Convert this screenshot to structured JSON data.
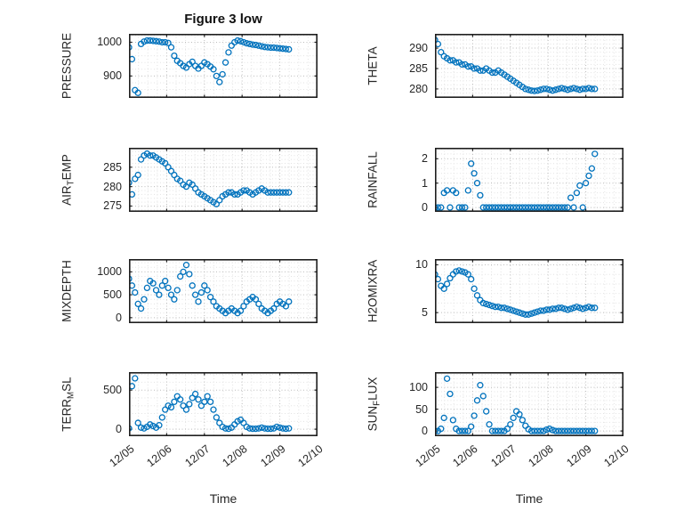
{
  "title": "Figure 3 low",
  "marker": {
    "shape": "circle",
    "color": "#0072BD"
  },
  "colors": {
    "accent": "#0072BD",
    "axis": "#1f1f1f",
    "grid_major": "#bcbcbc",
    "grid_minor": "#e3e3e3",
    "text": "#262626"
  },
  "x_axis": {
    "label": "Time",
    "xlim": [
      0,
      5
    ],
    "ticks": [
      0,
      1,
      2,
      3,
      4,
      5
    ],
    "tick_labels": [
      "12/05",
      "12/06",
      "12/07",
      "12/08",
      "12/09",
      "12/10"
    ],
    "minor_step": 0.25
  },
  "chart_data": {
    "type": "scatter",
    "x_units": "days since 12/05",
    "x": [
      0.0,
      0.08,
      0.16,
      0.24,
      0.32,
      0.4,
      0.48,
      0.56,
      0.64,
      0.72,
      0.8,
      0.88,
      0.96,
      1.04,
      1.12,
      1.2,
      1.28,
      1.36,
      1.44,
      1.52,
      1.6,
      1.68,
      1.76,
      1.84,
      1.92,
      2.0,
      2.08,
      2.16,
      2.24,
      2.32,
      2.4,
      2.48,
      2.56,
      2.64,
      2.72,
      2.8,
      2.88,
      2.96,
      3.04,
      3.12,
      3.2,
      3.28,
      3.36,
      3.44,
      3.52,
      3.6,
      3.68,
      3.76,
      3.84,
      3.92,
      4.0,
      4.08,
      4.16,
      4.24
    ],
    "subplots": [
      {
        "id": "pressure",
        "label_parts": [
          {
            "text": "PRESSURE"
          }
        ],
        "yticks": [
          900,
          1000
        ],
        "ylim": [
          835,
          1025
        ],
        "y": [
          985,
          950,
          858,
          850,
          995,
          1002,
          1005,
          1005,
          1004,
          1003,
          1002,
          1000,
          1000,
          998,
          985,
          960,
          945,
          938,
          930,
          925,
          935,
          942,
          930,
          922,
          930,
          940,
          935,
          928,
          920,
          900,
          882,
          905,
          940,
          970,
          990,
          1000,
          1005,
          1003,
          1000,
          997,
          995,
          993,
          992,
          990,
          988,
          986,
          985,
          984,
          984,
          983,
          982,
          981,
          980,
          979
        ]
      },
      {
        "id": "theta",
        "label_parts": [
          {
            "text": "THETA"
          }
        ],
        "yticks": [
          280,
          285,
          290
        ],
        "ylim": [
          277.8,
          293.5
        ],
        "y": [
          292,
          291,
          289,
          288,
          287.5,
          287,
          287,
          286.5,
          286.5,
          286,
          286,
          285.5,
          285.5,
          285,
          285,
          284.5,
          284.5,
          285,
          284.5,
          284,
          284,
          284.5,
          284,
          283.5,
          283,
          282.5,
          282,
          281.5,
          281,
          280.5,
          280,
          279.8,
          279.6,
          279.5,
          279.6,
          279.8,
          280,
          280,
          279.8,
          279.6,
          279.8,
          280,
          280.2,
          280,
          279.8,
          280,
          280.2,
          280,
          279.8,
          280,
          280,
          280.2,
          280,
          280
        ]
      },
      {
        "id": "air-temp",
        "label_parts": [
          {
            "text": "AIR"
          },
          {
            "text": "T",
            "sub": true
          },
          {
            "text": "EMP"
          }
        ],
        "yticks": [
          275,
          280,
          285
        ],
        "ylim": [
          273.5,
          290
        ],
        "y": [
          281,
          278,
          282,
          283,
          287,
          288,
          288.5,
          288,
          288,
          287.5,
          287,
          286.5,
          286,
          285,
          284,
          283,
          282,
          281.5,
          280.5,
          280,
          281,
          280.5,
          279.5,
          278.5,
          278,
          277.5,
          277,
          276.5,
          276,
          275.5,
          276.5,
          277.5,
          278,
          278.5,
          278.5,
          278,
          278,
          278.5,
          279,
          279,
          278.5,
          278,
          278.5,
          279,
          279.5,
          279,
          278.5,
          278.5,
          278.5,
          278.5,
          278.5,
          278.5,
          278.5,
          278.5
        ]
      },
      {
        "id": "rainfall",
        "label_parts": [
          {
            "text": "RAINFALL"
          }
        ],
        "yticks": [
          0,
          1,
          2
        ],
        "ylim": [
          -0.18,
          2.45
        ],
        "y": [
          0,
          0,
          0,
          0.6,
          0.7,
          0,
          0.7,
          0.6,
          0,
          0,
          0,
          0.7,
          1.8,
          1.4,
          1.0,
          0.5,
          0,
          0,
          0,
          0,
          0,
          0,
          0,
          0,
          0,
          0,
          0,
          0,
          0,
          0,
          0,
          0,
          0,
          0,
          0,
          0,
          0,
          0,
          0,
          0,
          0,
          0,
          0,
          0,
          0,
          0.4,
          0,
          0.6,
          0.9,
          0,
          1.0,
          1.3,
          1.6,
          2.2
        ]
      },
      {
        "id": "mixdepth",
        "label_parts": [
          {
            "text": "MIXDEPTH"
          }
        ],
        "yticks": [
          0,
          500,
          1000
        ],
        "ylim": [
          -120,
          1280
        ],
        "y": [
          850,
          700,
          550,
          300,
          200,
          400,
          650,
          800,
          750,
          600,
          500,
          700,
          800,
          650,
          500,
          400,
          600,
          900,
          1000,
          1150,
          950,
          700,
          500,
          350,
          550,
          700,
          600,
          450,
          350,
          250,
          200,
          150,
          100,
          150,
          200,
          150,
          100,
          150,
          250,
          350,
          400,
          450,
          400,
          300,
          200,
          150,
          100,
          150,
          200,
          300,
          350,
          300,
          250,
          350
        ]
      },
      {
        "id": "h2omixra",
        "label_parts": [
          {
            "text": "H2OMIXRA"
          }
        ],
        "yticks": [
          5,
          10
        ],
        "ylim": [
          3.9,
          10.6
        ],
        "y": [
          9.0,
          8.5,
          7.8,
          7.5,
          8.0,
          8.6,
          9.0,
          9.3,
          9.4,
          9.3,
          9.2,
          9.0,
          8.5,
          7.5,
          6.8,
          6.3,
          6.0,
          5.9,
          5.8,
          5.7,
          5.6,
          5.6,
          5.5,
          5.5,
          5.4,
          5.3,
          5.2,
          5.1,
          5.0,
          4.9,
          4.8,
          4.8,
          4.9,
          5.0,
          5.1,
          5.2,
          5.2,
          5.3,
          5.3,
          5.4,
          5.4,
          5.5,
          5.5,
          5.4,
          5.3,
          5.4,
          5.5,
          5.6,
          5.5,
          5.4,
          5.5,
          5.6,
          5.5,
          5.5
        ]
      },
      {
        "id": "terr-msl",
        "label_parts": [
          {
            "text": "TERR"
          },
          {
            "text": "M",
            "sub": true
          },
          {
            "text": "SL"
          }
        ],
        "yticks": [
          0,
          500
        ],
        "ylim": [
          -90,
          730
        ],
        "y": [
          10,
          550,
          650,
          80,
          20,
          10,
          30,
          60,
          40,
          20,
          50,
          150,
          250,
          300,
          280,
          350,
          420,
          380,
          300,
          250,
          320,
          400,
          450,
          380,
          300,
          350,
          420,
          350,
          250,
          150,
          80,
          30,
          10,
          5,
          20,
          60,
          100,
          120,
          80,
          30,
          10,
          5,
          5,
          10,
          20,
          10,
          5,
          5,
          10,
          30,
          20,
          10,
          5,
          10
        ]
      },
      {
        "id": "sun-flux",
        "label_parts": [
          {
            "text": "SUN"
          },
          {
            "text": "F",
            "sub": true
          },
          {
            "text": "LUX"
          }
        ],
        "yticks": [
          0,
          50,
          100
        ],
        "ylim": [
          -12,
          135
        ],
        "y": [
          0,
          0,
          5,
          30,
          120,
          85,
          25,
          5,
          0,
          0,
          0,
          0,
          10,
          35,
          70,
          105,
          80,
          45,
          15,
          0,
          0,
          0,
          0,
          0,
          5,
          15,
          30,
          45,
          38,
          25,
          12,
          4,
          0,
          0,
          0,
          0,
          0,
          3,
          5,
          2,
          0,
          0,
          0,
          0,
          0,
          0,
          0,
          0,
          0,
          0,
          0,
          0,
          0,
          0
        ]
      }
    ]
  }
}
